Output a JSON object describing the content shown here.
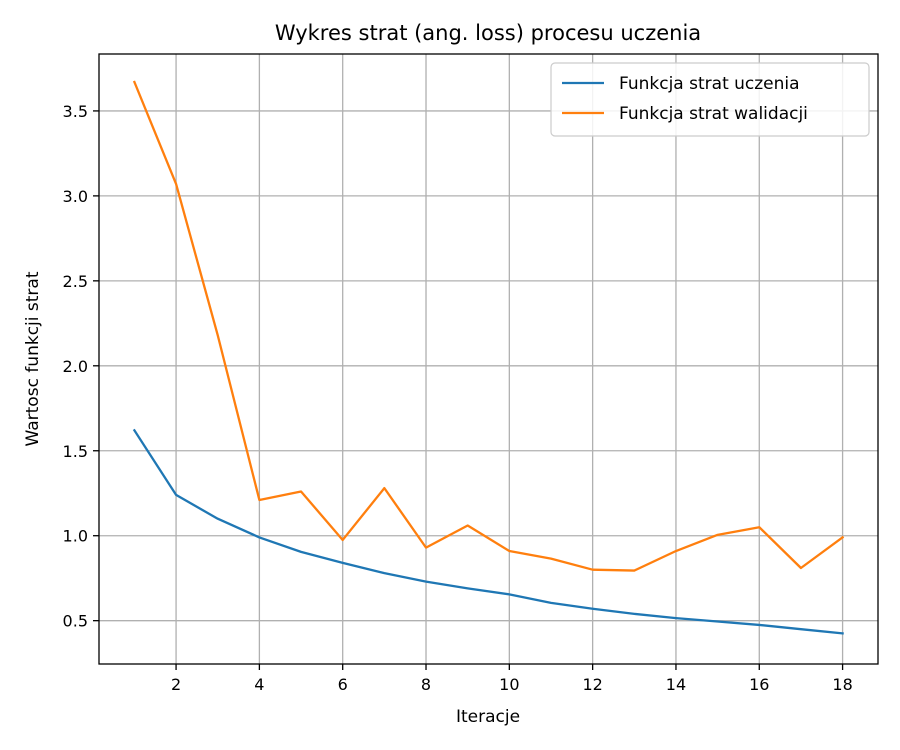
{
  "chart_data": {
    "type": "line",
    "title": "Wykres strat (ang. loss) procesu uczenia",
    "xlabel": "Iteracje",
    "ylabel": "Wartosc funkcji strat",
    "x": [
      1,
      2,
      3,
      4,
      5,
      6,
      7,
      8,
      9,
      10,
      11,
      12,
      13,
      14,
      15,
      16,
      17,
      18
    ],
    "xlim": [
      0.15,
      18.85
    ],
    "ylim": [
      0.245,
      3.835
    ],
    "xticks": [
      2,
      4,
      6,
      8,
      10,
      12,
      14,
      16,
      18
    ],
    "yticks": [
      0.5,
      1.0,
      1.5,
      2.0,
      2.5,
      3.0,
      3.5
    ],
    "xtick_labels": [
      "2",
      "4",
      "6",
      "8",
      "10",
      "12",
      "14",
      "16",
      "18"
    ],
    "ytick_labels": [
      "0.5",
      "1.0",
      "1.5",
      "2.0",
      "2.5",
      "3.0",
      "3.5"
    ],
    "grid": true,
    "legend_position": "top-right",
    "series": [
      {
        "name": "Funkcja strat uczenia",
        "color": "#1f77b4",
        "values": [
          1.62,
          1.24,
          1.1,
          0.99,
          0.905,
          0.84,
          0.78,
          0.73,
          0.69,
          0.655,
          0.605,
          0.57,
          0.54,
          0.515,
          0.495,
          0.475,
          0.45,
          0.425
        ]
      },
      {
        "name": "Funkcja strat walidacji",
        "color": "#ff7f0e",
        "values": [
          3.67,
          3.07,
          2.18,
          1.21,
          1.26,
          0.975,
          1.28,
          0.93,
          1.06,
          0.91,
          0.865,
          0.8,
          0.795,
          0.91,
          1.005,
          1.05,
          0.81,
          0.99
        ]
      }
    ]
  }
}
